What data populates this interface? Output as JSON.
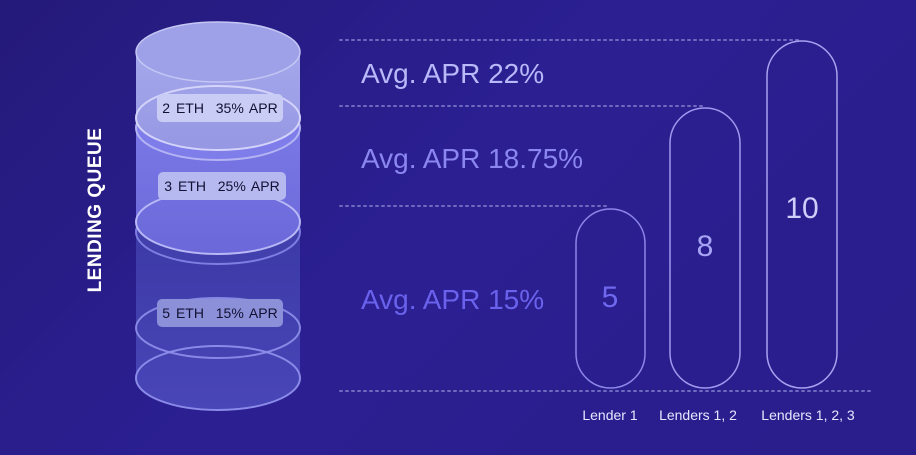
{
  "stack": {
    "title": "LENDING QUEUE",
    "items": [
      {
        "amount": "2 ETH",
        "apr": "35% APR"
      },
      {
        "amount": "3 ETH",
        "apr": "25% APR"
      },
      {
        "amount": "5 ETH",
        "apr": "15% APR"
      }
    ]
  },
  "avg_apr": [
    {
      "label": "Avg. APR 22%",
      "color": "#b9b8f8"
    },
    {
      "label": "Avg. APR 18.75%",
      "color": "#8b86f0"
    },
    {
      "label": "Avg. APR 15%",
      "color": "#6a62ec"
    }
  ],
  "bars": [
    {
      "value": "5",
      "label": "Lender 1",
      "color": "#6f67ee"
    },
    {
      "value": "8",
      "label": "Lenders 1, 2",
      "color": "#a8a4f5"
    },
    {
      "value": "10",
      "label": "Lenders 1, 2, 3",
      "color": "#cfcdfa"
    }
  ]
}
